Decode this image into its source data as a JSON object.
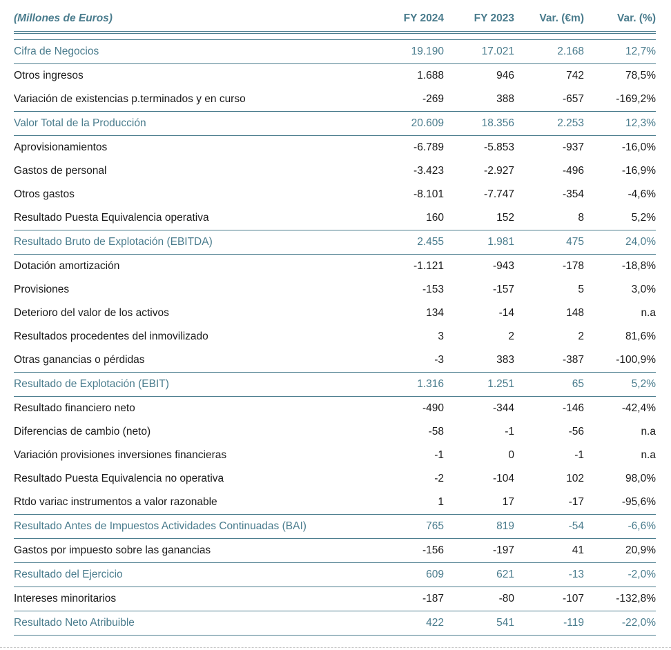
{
  "colors": {
    "accent_teal": "#4a7c8d",
    "body_text": "#1a1a1a",
    "page_break_dash": "#c6c6c6"
  },
  "table": {
    "columns": [
      {
        "label": "(Millones de Euros)"
      },
      {
        "label": "FY 2024"
      },
      {
        "label": "FY 2023"
      },
      {
        "label": "Var. (€m)"
      },
      {
        "label": "Var. (%)"
      }
    ],
    "rows": [
      {
        "style": "subtotal",
        "label": "Cifra de Negocios",
        "values": [
          "19.190",
          "17.021",
          "2.168",
          "12,7%"
        ]
      },
      {
        "style": "plain",
        "label": "Otros ingresos",
        "values": [
          "1.688",
          "946",
          "742",
          "78,5%"
        ]
      },
      {
        "style": "plain",
        "label": "Variación de existencias p.terminados y en curso",
        "values": [
          "-269",
          "388",
          "-657",
          "-169,2%"
        ]
      },
      {
        "style": "subtotal",
        "label": "Valor Total de la Producción",
        "values": [
          "20.609",
          "18.356",
          "2.253",
          "12,3%"
        ]
      },
      {
        "style": "plain",
        "label": "Aprovisionamientos",
        "values": [
          "-6.789",
          "-5.853",
          "-937",
          "-16,0%"
        ]
      },
      {
        "style": "plain",
        "label": "Gastos de personal",
        "values": [
          "-3.423",
          "-2.927",
          "-496",
          "-16,9%"
        ]
      },
      {
        "style": "plain",
        "label": "Otros gastos",
        "values": [
          "-8.101",
          "-7.747",
          "-354",
          "-4,6%"
        ]
      },
      {
        "style": "plain",
        "label": "Resultado Puesta Equivalencia operativa",
        "values": [
          "160",
          "152",
          "8",
          "5,2%"
        ]
      },
      {
        "style": "subtotal",
        "label": "Resultado Bruto de Explotación (EBITDA)",
        "values": [
          "2.455",
          "1.981",
          "475",
          "24,0%"
        ]
      },
      {
        "style": "plain",
        "label": "Dotación amortización",
        "values": [
          "-1.121",
          "-943",
          "-178",
          "-18,8%"
        ]
      },
      {
        "style": "plain",
        "label": "Provisiones",
        "values": [
          "-153",
          "-157",
          "5",
          "3,0%"
        ]
      },
      {
        "style": "plain",
        "label": "Deterioro del valor de los activos",
        "values": [
          "134",
          "-14",
          "148",
          "n.a"
        ]
      },
      {
        "style": "plain",
        "label": "Resultados procedentes del inmovilizado",
        "values": [
          "3",
          "2",
          "2",
          "81,6%"
        ]
      },
      {
        "style": "plain",
        "label": "Otras ganancias o pérdidas",
        "values": [
          "-3",
          "383",
          "-387",
          "-100,9%"
        ]
      },
      {
        "style": "subtotal",
        "label": "Resultado de Explotación (EBIT)",
        "values": [
          "1.316",
          "1.251",
          "65",
          "5,2%"
        ]
      },
      {
        "style": "plain",
        "label": "Resultado financiero neto",
        "values": [
          "-490",
          "-344",
          "-146",
          "-42,4%"
        ]
      },
      {
        "style": "plain",
        "label": "Diferencias de cambio (neto)",
        "values": [
          "-58",
          "-1",
          "-56",
          "n.a"
        ]
      },
      {
        "style": "plain",
        "label": "Variación provisiones inversiones financieras",
        "values": [
          "-1",
          "0",
          "-1",
          "n.a"
        ]
      },
      {
        "style": "plain",
        "label": "Resultado Puesta Equivalencia no operativa",
        "values": [
          "-2",
          "-104",
          "102",
          "98,0%"
        ]
      },
      {
        "style": "plain",
        "label": "Rtdo variac instrumentos a valor razonable",
        "values": [
          "1",
          "17",
          "-17",
          "-95,6%"
        ]
      },
      {
        "style": "subtotal",
        "label": "Resultado Antes de Impuestos Actividades Continuadas (BAI)",
        "values": [
          "765",
          "819",
          "-54",
          "-6,6%"
        ]
      },
      {
        "style": "plain",
        "label": "Gastos por impuesto sobre las ganancias",
        "values": [
          "-156",
          "-197",
          "41",
          "20,9%"
        ]
      },
      {
        "style": "subtotal",
        "label": "Resultado del Ejercicio",
        "values": [
          "609",
          "621",
          "-13",
          "-2,0%"
        ]
      },
      {
        "style": "plain",
        "label": "Intereses minoritarios",
        "values": [
          "-187",
          "-80",
          "-107",
          "-132,8%"
        ]
      },
      {
        "style": "subtotal",
        "label": "Resultado Neto Atribuible",
        "values": [
          "422",
          "541",
          "-119",
          "-22,0%"
        ]
      }
    ]
  }
}
